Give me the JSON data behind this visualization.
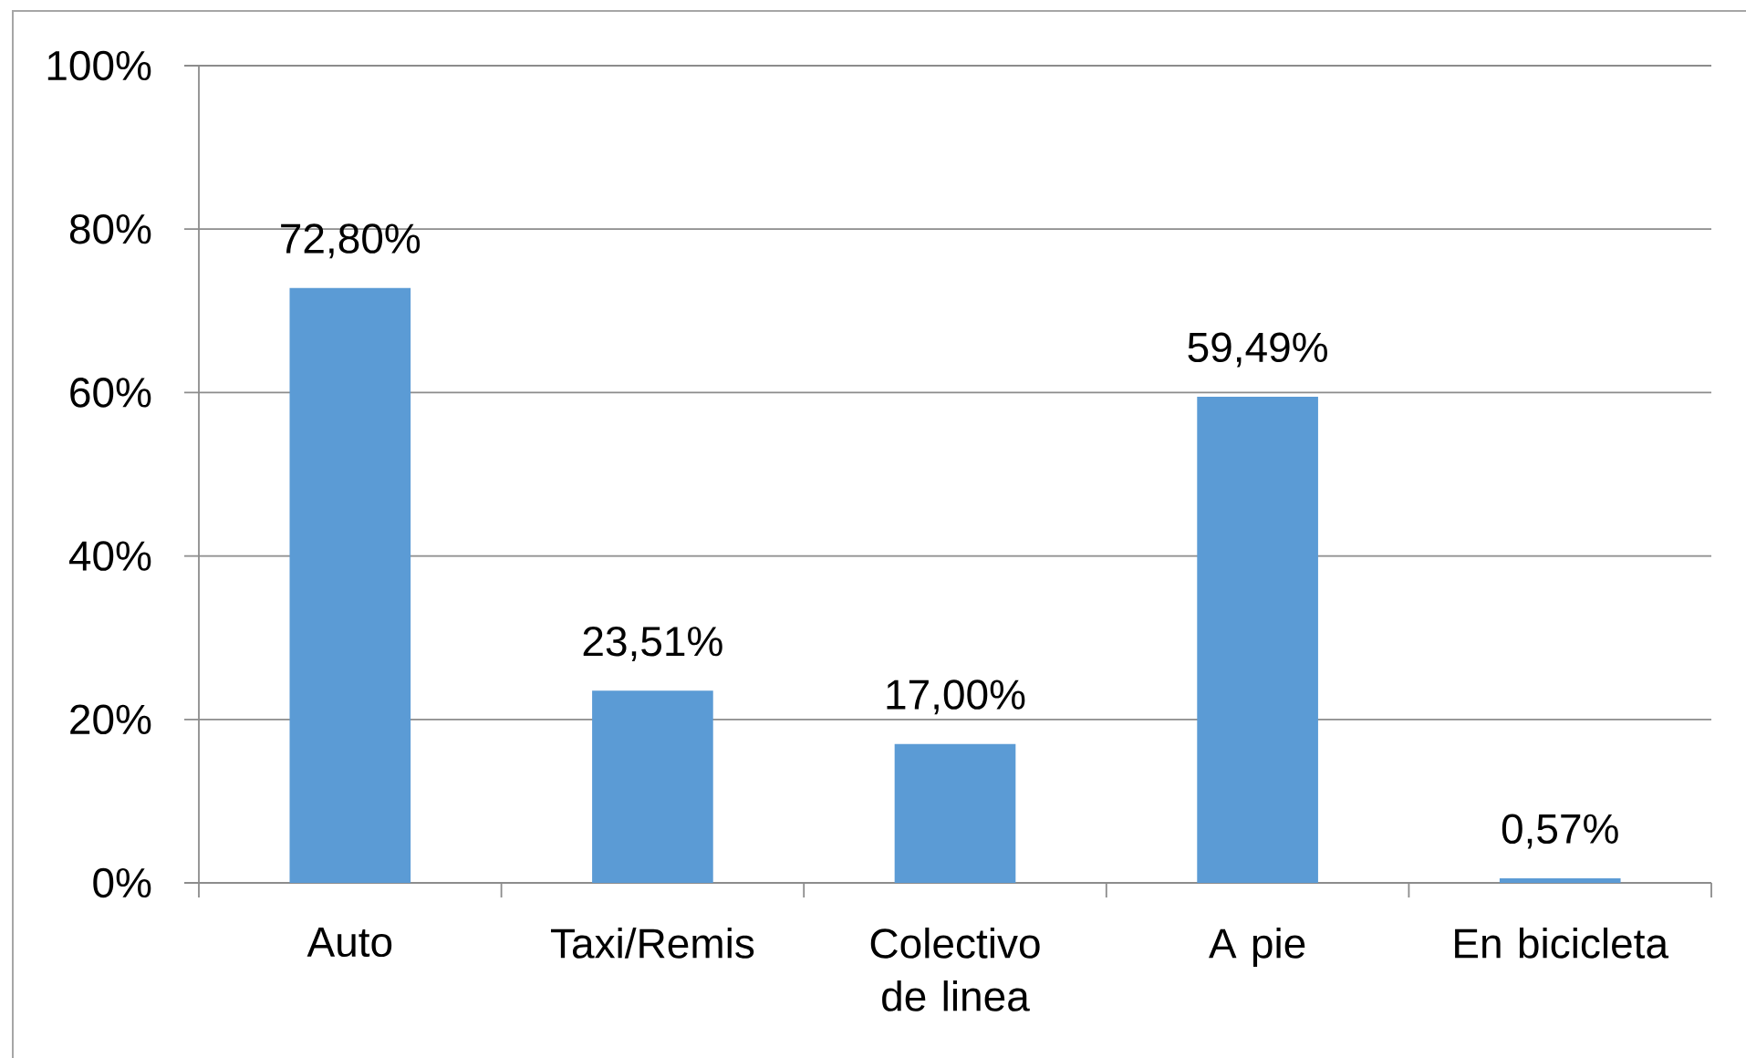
{
  "chart_data": {
    "type": "bar",
    "categories": [
      "Auto",
      "Taxi/Remis",
      "Colectivo de linea",
      "A pie",
      "En bicicleta"
    ],
    "values": [
      72.8,
      23.51,
      17.0,
      59.49,
      0.57
    ],
    "value_labels": [
      "72,80%",
      "23,51%",
      "17,00%",
      "59,49%",
      "0,57%"
    ],
    "color": "#5b9bd5",
    "ylim": [
      0,
      100
    ],
    "yticks": [
      {
        "value": 0,
        "label": "0%"
      },
      {
        "value": 20,
        "label": "20%"
      },
      {
        "value": 40,
        "label": "40%"
      },
      {
        "value": 60,
        "label": "60%"
      },
      {
        "value": 80,
        "label": "80%"
      },
      {
        "value": 100,
        "label": "100%"
      }
    ],
    "grid": "y"
  }
}
